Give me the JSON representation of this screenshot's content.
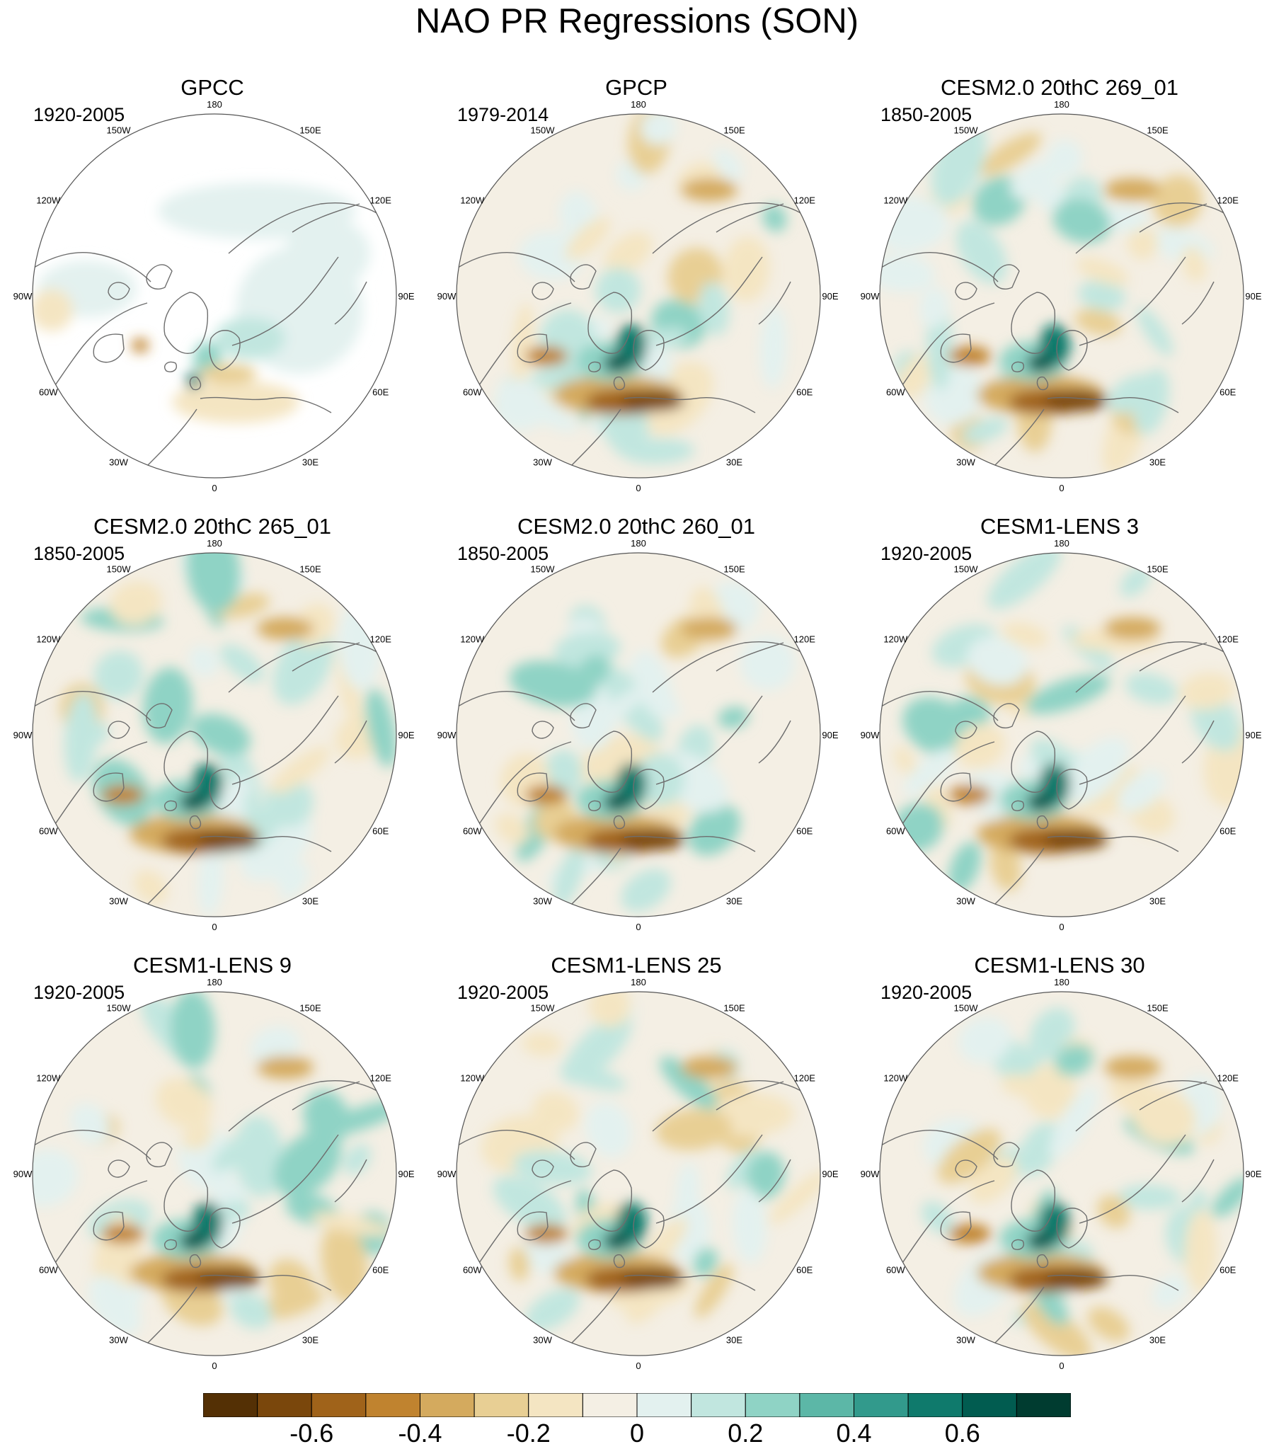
{
  "figure": {
    "title": "NAO PR Regressions (SON)"
  },
  "lon_labels": [
    "180",
    "150E",
    "120E",
    "90E",
    "60E",
    "30E",
    "0",
    "30W",
    "60W",
    "90W",
    "120W",
    "150W"
  ],
  "panels": [
    {
      "title": "GPCC",
      "period": "1920-2005",
      "land_only": true
    },
    {
      "title": "GPCP",
      "period": "1979-2014"
    },
    {
      "title": "CESM2.0 20thC 269_01",
      "period": "1850-2005"
    },
    {
      "title": "CESM2.0 20thC 265_01",
      "period": "1850-2005"
    },
    {
      "title": "CESM2.0 20thC 260_01",
      "period": "1850-2005"
    },
    {
      "title": "CESM1-LENS 3",
      "period": "1920-2005"
    },
    {
      "title": "CESM1-LENS 9",
      "period": "1920-2005"
    },
    {
      "title": "CESM1-LENS 25",
      "period": "1920-2005"
    },
    {
      "title": "CESM1-LENS 30",
      "period": "1920-2005"
    }
  ],
  "colorbar": {
    "colors": [
      "#543005",
      "#7a470c",
      "#a0631a",
      "#c0832f",
      "#d4aa5e",
      "#e8cf94",
      "#f4e5c2",
      "#f4efe4",
      "#e3f1ef",
      "#c1e6df",
      "#8fd3c5",
      "#5cb7a7",
      "#329a8c",
      "#0f7a6c",
      "#015c50",
      "#003c30"
    ],
    "labels": [
      "-0.6",
      "-0.4",
      "-0.2",
      "0",
      "0.2",
      "0.4",
      "0.6"
    ]
  },
  "colors": {
    "background": "#ffffff",
    "coastline": "#6e6e6e",
    "ocean_missing": "#ffffff"
  }
}
